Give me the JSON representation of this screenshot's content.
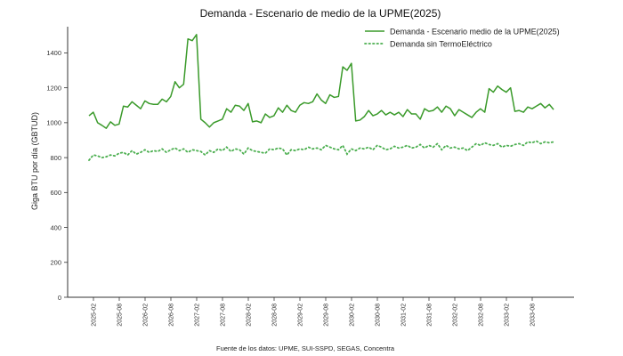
{
  "chart_data": {
    "type": "line",
    "title": "Demanda - Escenario de medio de la UPME(2025)",
    "xlabel": "",
    "ylabel": "Giga BTU por día (GBTUD)",
    "ylim": [
      0,
      1550
    ],
    "y_ticks": [
      0,
      200,
      400,
      600,
      800,
      1000,
      1200,
      1400
    ],
    "x_ticks": [
      "2025-02",
      "2025-08",
      "2026-02",
      "2026-08",
      "2027-02",
      "2027-08",
      "2028-02",
      "2028-08",
      "2029-02",
      "2029-08",
      "2030-02",
      "2030-08",
      "2031-02",
      "2031-08",
      "2032-02",
      "2032-08",
      "2033-02",
      "2033-08"
    ],
    "grid": false,
    "legend_position": "top-right",
    "series": [
      {
        "name": "Demanda - Escenario medio de la UPME(2025)",
        "style": "solid",
        "color": "#3a9a2a",
        "values": [
          1040,
          1060,
          1000,
          985,
          968,
          1005,
          985,
          992,
          1095,
          1090,
          1120,
          1100,
          1080,
          1125,
          1110,
          1105,
          1105,
          1135,
          1120,
          1150,
          1235,
          1200,
          1220,
          1480,
          1470,
          1505,
          1020,
          1000,
          975,
          1000,
          1010,
          1020,
          1080,
          1060,
          1100,
          1095,
          1070,
          1110,
          1005,
          1010,
          1000,
          1050,
          1030,
          1040,
          1085,
          1060,
          1100,
          1070,
          1060,
          1100,
          1115,
          1110,
          1120,
          1165,
          1130,
          1110,
          1160,
          1145,
          1150,
          1320,
          1300,
          1340,
          1010,
          1015,
          1035,
          1070,
          1040,
          1050,
          1070,
          1045,
          1060,
          1045,
          1060,
          1035,
          1075,
          1050,
          1050,
          1020,
          1080,
          1065,
          1070,
          1090,
          1060,
          1095,
          1080,
          1040,
          1075,
          1060,
          1045,
          1030,
          1060,
          1080,
          1060,
          1195,
          1175,
          1210,
          1190,
          1175,
          1200,
          1065,
          1070,
          1060,
          1090,
          1080,
          1095,
          1110,
          1085,
          1105,
          1075
        ]
      },
      {
        "name": "Demanda sin TermoEléctrico",
        "style": "dotted",
        "color": "#4caf50",
        "values": [
          785,
          815,
          810,
          800,
          805,
          815,
          810,
          825,
          830,
          815,
          840,
          820,
          830,
          845,
          830,
          840,
          835,
          850,
          830,
          845,
          855,
          840,
          850,
          830,
          845,
          840,
          835,
          815,
          840,
          830,
          850,
          840,
          860,
          835,
          850,
          845,
          820,
          855,
          840,
          835,
          830,
          825,
          850,
          845,
          855,
          850,
          815,
          845,
          840,
          850,
          845,
          860,
          850,
          855,
          845,
          870,
          860,
          850,
          845,
          870,
          820,
          850,
          840,
          855,
          850,
          860,
          845,
          870,
          860,
          845,
          850,
          865,
          855,
          860,
          870,
          855,
          860,
          875,
          855,
          870,
          860,
          880,
          845,
          870,
          855,
          860,
          850,
          855,
          840,
          860,
          880,
          870,
          885,
          875,
          870,
          880,
          860,
          870,
          865,
          875,
          880,
          870,
          890,
          885,
          895,
          880,
          890,
          885,
          890
        ]
      }
    ],
    "source_note": "Fuente de los datos: UPME, SUI-SSPD, SEGAS, Concentra"
  }
}
